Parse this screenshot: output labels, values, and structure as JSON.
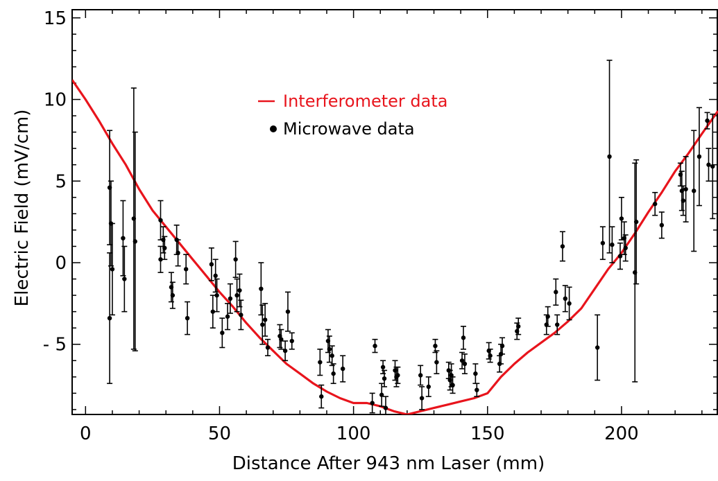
{
  "chart_data": {
    "type": "scatter",
    "xlabel": "Distance After 943 nm Laser (mm)",
    "ylabel": "Electric  Field  (mV/cm)",
    "xlim": [
      -5,
      236
    ],
    "ylim": [
      -9.3,
      15.5
    ],
    "x_ticks": [
      {
        "value": 0,
        "label": "0"
      },
      {
        "value": 50,
        "label": "50"
      },
      {
        "value": 100,
        "label": "100"
      },
      {
        "value": 150,
        "label": "150"
      },
      {
        "value": 200,
        "label": "200"
      }
    ],
    "y_ticks": [
      {
        "value": 15,
        "label": "15"
      },
      {
        "value": 10,
        "label": "10"
      },
      {
        "value": 5,
        "label": "5"
      },
      {
        "value": 0,
        "label": "0"
      },
      {
        "value": -5,
        "label": "- 5"
      }
    ],
    "legend": [
      {
        "label": "Interferometer data",
        "color": "#e8141c",
        "marker": "line"
      },
      {
        "label": "Microwave data",
        "color": "#000000",
        "marker": "dot"
      }
    ],
    "series": [
      {
        "name": "Interferometer data",
        "kind": "line",
        "color": "#e8141c",
        "x": [
          -5,
          0,
          5,
          10,
          15,
          20,
          25,
          30,
          35,
          40,
          45,
          50,
          55,
          60,
          65,
          70,
          75,
          80,
          85,
          90,
          95,
          100,
          105,
          110,
          115,
          120,
          125,
          130,
          135,
          140,
          145,
          150,
          155,
          160,
          165,
          170,
          175,
          180,
          185,
          190,
          195,
          200,
          205,
          210,
          215,
          220,
          225,
          230,
          236
        ],
        "y": [
          11.2,
          10.0,
          8.7,
          7.3,
          6.0,
          4.5,
          3.2,
          2.2,
          1.2,
          0.2,
          -0.8,
          -1.8,
          -2.7,
          -3.7,
          -4.6,
          -5.4,
          -6.2,
          -6.8,
          -7.4,
          -7.9,
          -8.3,
          -8.6,
          -8.6,
          -8.8,
          -9.1,
          -9.3,
          -9.1,
          -8.9,
          -8.7,
          -8.5,
          -8.3,
          -8.0,
          -7.0,
          -6.2,
          -5.5,
          -4.9,
          -4.3,
          -3.6,
          -2.8,
          -1.6,
          -0.4,
          0.6,
          1.8,
          3.1,
          4.3,
          5.6,
          6.7,
          7.9,
          9.3
        ]
      },
      {
        "name": "Microwave data",
        "kind": "scatter",
        "color": "#000000",
        "points": [
          {
            "x": 9,
            "y": 4.6,
            "yerr": 3.5
          },
          {
            "x": 9,
            "y": -3.4,
            "yerr": 4.0
          },
          {
            "x": 9.5,
            "y": 2.4,
            "yerr": 2.6
          },
          {
            "x": 10,
            "y": -0.4,
            "yerr": 2.8
          },
          {
            "x": 14,
            "y": 1.5,
            "yerr": 2.3
          },
          {
            "x": 14.5,
            "y": -1.0,
            "yerr": 2.0
          },
          {
            "x": 18,
            "y": 2.7,
            "yerr": 8.0
          },
          {
            "x": 18.5,
            "y": 1.3,
            "yerr": 6.7
          },
          {
            "x": 28,
            "y": 2.6,
            "yerr": 1.2
          },
          {
            "x": 28,
            "y": 0.2,
            "yerr": 0.8
          },
          {
            "x": 29,
            "y": 1.4,
            "yerr": 0.8
          },
          {
            "x": 29.5,
            "y": 0.9,
            "yerr": 0.7
          },
          {
            "x": 32,
            "y": -1.5,
            "yerr": 0.9
          },
          {
            "x": 32.5,
            "y": -2.0,
            "yerr": 0.8
          },
          {
            "x": 34,
            "y": 1.4,
            "yerr": 0.9
          },
          {
            "x": 34.5,
            "y": 0.6,
            "yerr": 0.8
          },
          {
            "x": 37.5,
            "y": -0.4,
            "yerr": 0.9
          },
          {
            "x": 38,
            "y": -3.4,
            "yerr": 1.0
          },
          {
            "x": 47,
            "y": -0.1,
            "yerr": 1.0
          },
          {
            "x": 47.5,
            "y": -3.0,
            "yerr": 1.0
          },
          {
            "x": 48.5,
            "y": -0.8,
            "yerr": 1.0
          },
          {
            "x": 49,
            "y": -2.0,
            "yerr": 1.0
          },
          {
            "x": 51,
            "y": -4.3,
            "yerr": 0.9
          },
          {
            "x": 53,
            "y": -3.3,
            "yerr": 0.8
          },
          {
            "x": 54,
            "y": -2.2,
            "yerr": 0.9
          },
          {
            "x": 56,
            "y": 0.2,
            "yerr": 1.1
          },
          {
            "x": 56.5,
            "y": -2.0,
            "yerr": 1.0
          },
          {
            "x": 57.5,
            "y": -1.7,
            "yerr": 1.0
          },
          {
            "x": 58,
            "y": -3.2,
            "yerr": 0.9
          },
          {
            "x": 65.5,
            "y": -1.6,
            "yerr": 1.6
          },
          {
            "x": 66,
            "y": -3.8,
            "yerr": 1.2
          },
          {
            "x": 67,
            "y": -3.5,
            "yerr": 1.0
          },
          {
            "x": 68,
            "y": -5.2,
            "yerr": 0.5
          },
          {
            "x": 72.5,
            "y": -4.5,
            "yerr": 0.7
          },
          {
            "x": 73,
            "y": -4.7,
            "yerr": 0.6
          },
          {
            "x": 74.5,
            "y": -5.4,
            "yerr": 0.6
          },
          {
            "x": 75.5,
            "y": -3.0,
            "yerr": 1.2
          },
          {
            "x": 77,
            "y": -4.8,
            "yerr": 0.5
          },
          {
            "x": 87.5,
            "y": -6.1,
            "yerr": 0.8
          },
          {
            "x": 88,
            "y": -8.2,
            "yerr": 0.7
          },
          {
            "x": 90.5,
            "y": -4.8,
            "yerr": 0.7
          },
          {
            "x": 91,
            "y": -5.3,
            "yerr": 0.8
          },
          {
            "x": 92,
            "y": -5.7,
            "yerr": 0.6
          },
          {
            "x": 92.5,
            "y": -6.8,
            "yerr": 0.6
          },
          {
            "x": 96,
            "y": -6.5,
            "yerr": 0.8
          },
          {
            "x": 107,
            "y": -8.6,
            "yerr": 0.6
          },
          {
            "x": 108,
            "y": -5.1,
            "yerr": 0.4
          },
          {
            "x": 110.5,
            "y": -8.1,
            "yerr": 0.7
          },
          {
            "x": 111,
            "y": -6.4,
            "yerr": 0.4
          },
          {
            "x": 111.5,
            "y": -7.1,
            "yerr": 0.5
          },
          {
            "x": 112,
            "y": -8.9,
            "yerr": 0.7
          },
          {
            "x": 115.5,
            "y": -6.6,
            "yerr": 0.6
          },
          {
            "x": 116,
            "y": -7.0,
            "yerr": 0.6
          },
          {
            "x": 116.5,
            "y": -6.9,
            "yerr": 0.5
          },
          {
            "x": 125,
            "y": -6.9,
            "yerr": 0.6
          },
          {
            "x": 125.5,
            "y": -8.3,
            "yerr": 0.7
          },
          {
            "x": 128,
            "y": -7.6,
            "yerr": 0.6
          },
          {
            "x": 130.5,
            "y": -5.1,
            "yerr": 0.4
          },
          {
            "x": 131,
            "y": -6.1,
            "yerr": 0.7
          },
          {
            "x": 135.5,
            "y": -6.6,
            "yerr": 0.5
          },
          {
            "x": 136,
            "y": -7.2,
            "yerr": 0.6
          },
          {
            "x": 136.5,
            "y": -6.9,
            "yerr": 0.7
          },
          {
            "x": 137,
            "y": -7.5,
            "yerr": 0.5
          },
          {
            "x": 140.5,
            "y": -6.0,
            "yerr": 0.5
          },
          {
            "x": 141,
            "y": -4.6,
            "yerr": 0.7
          },
          {
            "x": 141.5,
            "y": -6.2,
            "yerr": 0.6
          },
          {
            "x": 145.5,
            "y": -6.8,
            "yerr": 0.6
          },
          {
            "x": 146,
            "y": -7.8,
            "yerr": 0.4
          },
          {
            "x": 150.5,
            "y": -5.4,
            "yerr": 0.5
          },
          {
            "x": 151,
            "y": -5.7,
            "yerr": 0.4
          },
          {
            "x": 154.5,
            "y": -6.2,
            "yerr": 0.5
          },
          {
            "x": 155,
            "y": -5.6,
            "yerr": 0.6
          },
          {
            "x": 155.5,
            "y": -5.1,
            "yerr": 0.5
          },
          {
            "x": 161,
            "y": -4.2,
            "yerr": 0.5
          },
          {
            "x": 161.5,
            "y": -3.9,
            "yerr": 0.5
          },
          {
            "x": 172,
            "y": -3.8,
            "yerr": 0.6
          },
          {
            "x": 172.5,
            "y": -3.3,
            "yerr": 0.6
          },
          {
            "x": 175.5,
            "y": -1.8,
            "yerr": 0.8
          },
          {
            "x": 176,
            "y": -3.8,
            "yerr": 0.6
          },
          {
            "x": 178,
            "y": 1.0,
            "yerr": 0.9
          },
          {
            "x": 179,
            "y": -2.2,
            "yerr": 0.8
          },
          {
            "x": 180.5,
            "y": -2.5,
            "yerr": 1.0
          },
          {
            "x": 191,
            "y": -5.2,
            "yerr": 2.0
          },
          {
            "x": 193,
            "y": 1.2,
            "yerr": 1.0
          },
          {
            "x": 195.5,
            "y": 6.5,
            "yerr": 5.9
          },
          {
            "x": 196.5,
            "y": 1.1,
            "yerr": 1.1
          },
          {
            "x": 199.5,
            "y": 0.4,
            "yerr": 0.8
          },
          {
            "x": 200,
            "y": 2.7,
            "yerr": 1.3
          },
          {
            "x": 201,
            "y": 1.5,
            "yerr": 1.0
          },
          {
            "x": 201.5,
            "y": 0.9,
            "yerr": 0.8
          },
          {
            "x": 205,
            "y": -0.6,
            "yerr": 6.7
          },
          {
            "x": 205.5,
            "y": 2.5,
            "yerr": 3.8
          },
          {
            "x": 212.5,
            "y": 3.6,
            "yerr": 0.7
          },
          {
            "x": 215,
            "y": 2.3,
            "yerr": 0.8
          },
          {
            "x": 222,
            "y": 5.4,
            "yerr": 0.7
          },
          {
            "x": 222.5,
            "y": 4.4,
            "yerr": 1.2
          },
          {
            "x": 223,
            "y": 3.8,
            "yerr": 0.9
          },
          {
            "x": 224,
            "y": 4.5,
            "yerr": 2.0
          },
          {
            "x": 227,
            "y": 4.4,
            "yerr": 3.7
          },
          {
            "x": 229,
            "y": 6.5,
            "yerr": 3.0
          },
          {
            "x": 232,
            "y": 8.7,
            "yerr": 0.5
          },
          {
            "x": 232.5,
            "y": 6.0,
            "yerr": 1.0
          },
          {
            "x": 234,
            "y": 5.9,
            "yerr": 3.2
          }
        ]
      }
    ],
    "grid": false,
    "legend_position": "top-center"
  }
}
